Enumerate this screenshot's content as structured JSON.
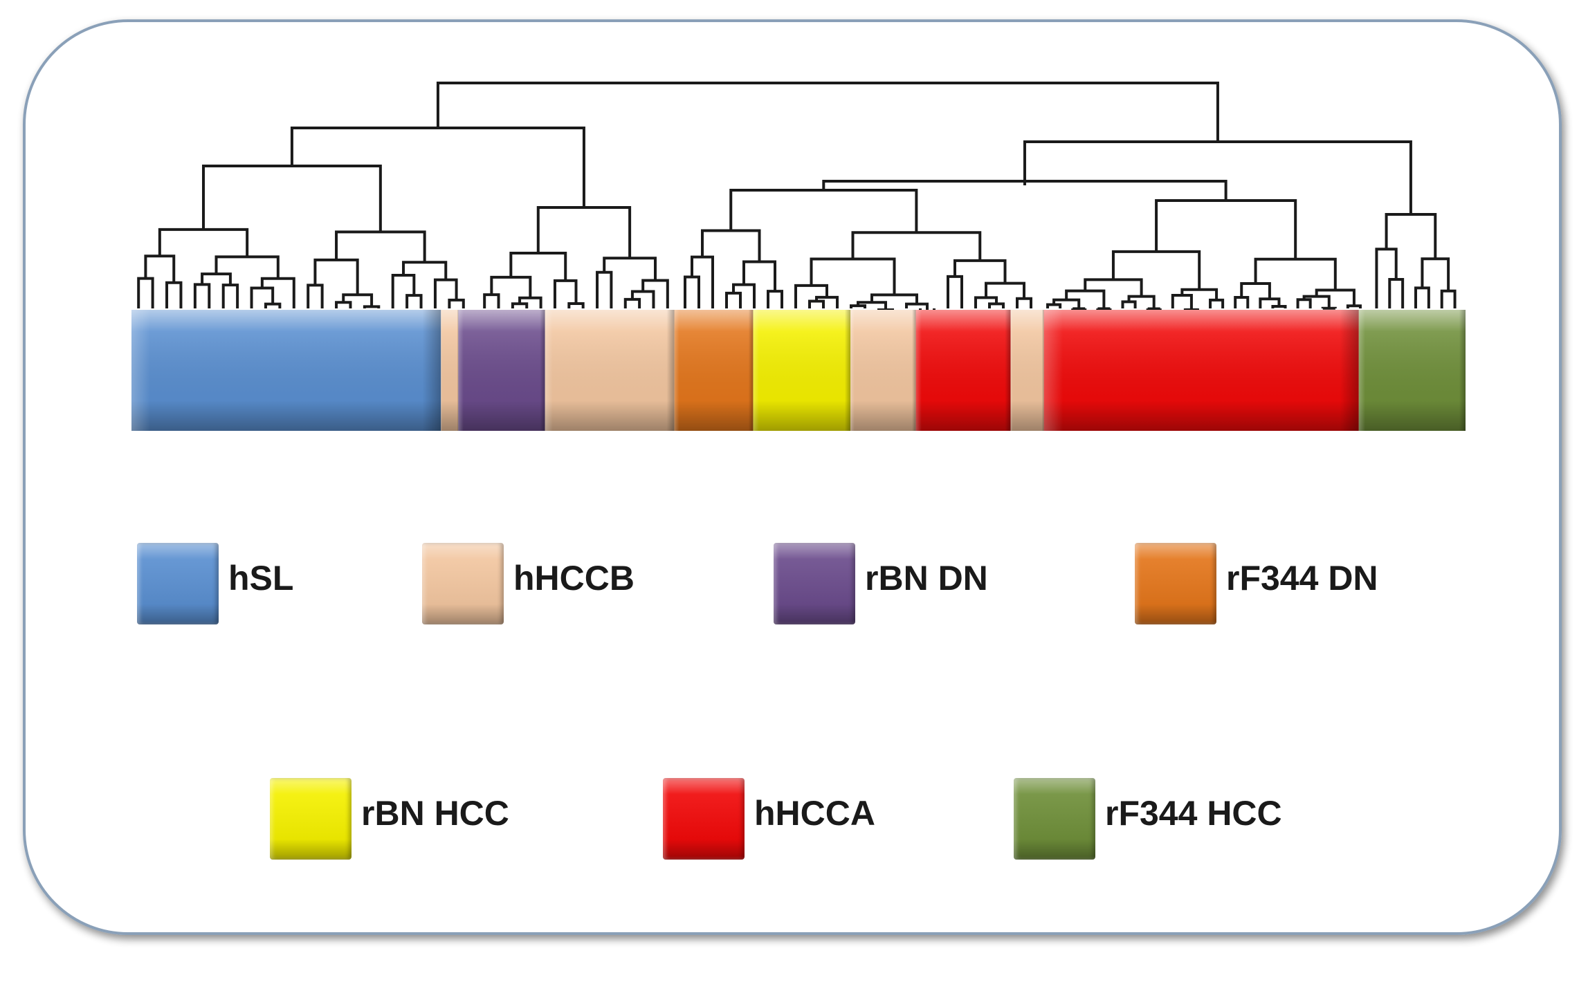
{
  "legend": [
    {
      "key": "hSL",
      "label": "hSL",
      "color": "#5a8fd0"
    },
    {
      "key": "hHCCB",
      "label": "hHCCB",
      "color": "#f2c6a0"
    },
    {
      "key": "rBN DN",
      "label": "rBN DN",
      "color": "#6b4c8c"
    },
    {
      "key": "rF344 DN",
      "label": "rF344 DN",
      "color": "#e3761c"
    },
    {
      "key": "rBN HCC",
      "label": "rBN HCC",
      "color": "#f4f000"
    },
    {
      "key": "hHCCA",
      "label": "hHCCA",
      "color": "#f00a0a"
    },
    {
      "key": "rF344 HCC",
      "label": "rF344 HCC",
      "color": "#6f8f3a"
    }
  ],
  "cluster_bar": [
    {
      "group": "hSL",
      "fraction": 0.232
    },
    {
      "group": "hHCCB",
      "fraction": 0.013
    },
    {
      "group": "rBN DN",
      "fraction": 0.065
    },
    {
      "group": "hHCCB",
      "fraction": 0.097
    },
    {
      "group": "rF344 DN",
      "fraction": 0.059
    },
    {
      "group": "rBN HCC",
      "fraction": 0.073
    },
    {
      "group": "hHCCB",
      "fraction": 0.049
    },
    {
      "group": "hHCCA",
      "fraction": 0.071
    },
    {
      "group": "hHCCB",
      "fraction": 0.025
    },
    {
      "group": "hHCCA",
      "fraction": 0.236
    },
    {
      "group": "rF344 HCC",
      "fraction": 0.08
    }
  ]
}
